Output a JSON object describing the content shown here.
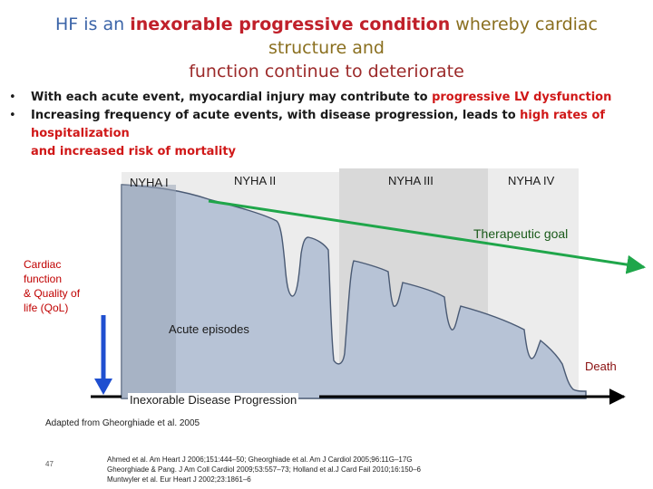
{
  "title": {
    "part1": "HF",
    "part2": " is an ",
    "part3": "inexorable progressive condition",
    "part4": " whereby cardiac structure and",
    "line2": "function continue to deteriorate"
  },
  "bullets": [
    {
      "marker": "•",
      "text": "With each acute event, myocardial injury may contribute to ",
      "highlight": "progressive LV dysfunction",
      "tail": ""
    },
    {
      "marker": "•",
      "text": "Increasing frequency of acute events, with disease progression, leads to ",
      "highlight": "high rates of hospitalization",
      "tail": "and increased risk of mortality"
    }
  ],
  "diagram": {
    "stages": [
      "NYHA I",
      "NYHA II",
      "NYHA III",
      "NYHA IV"
    ],
    "therapeutic_goal": "Therapeutic goal",
    "y_label": [
      "Cardiac",
      "function",
      "& Quality of",
      "life (QoL)"
    ],
    "acute_episodes": "Acute episodes",
    "death": "Death",
    "x_label": "Inexorable Disease Progression",
    "colors": {
      "curve_fill": "#b7c3d6",
      "band_light": "#ececec",
      "band_mid": "#d9d9d9",
      "therapeutic_line": "#1fa64a",
      "arrow_blue": "#1f4fd0",
      "label_red": "#c00000"
    }
  },
  "source": "Adapted from Gheorghiade et al. 2005",
  "page_number": "47",
  "references": [
    "Ahmed et al. Am Heart J 2006;151:444–50; Gheorghiade et al. Am J Cardiol 2005;96:11G–17G",
    "Gheorghiade & Pang. J Am Coll Cardiol 2009;53:557–73; Holland et al.J Card Fail 2010;16:150–6",
    "Muntwyler et al. Eur Heart J 2002;23:1861–6"
  ]
}
